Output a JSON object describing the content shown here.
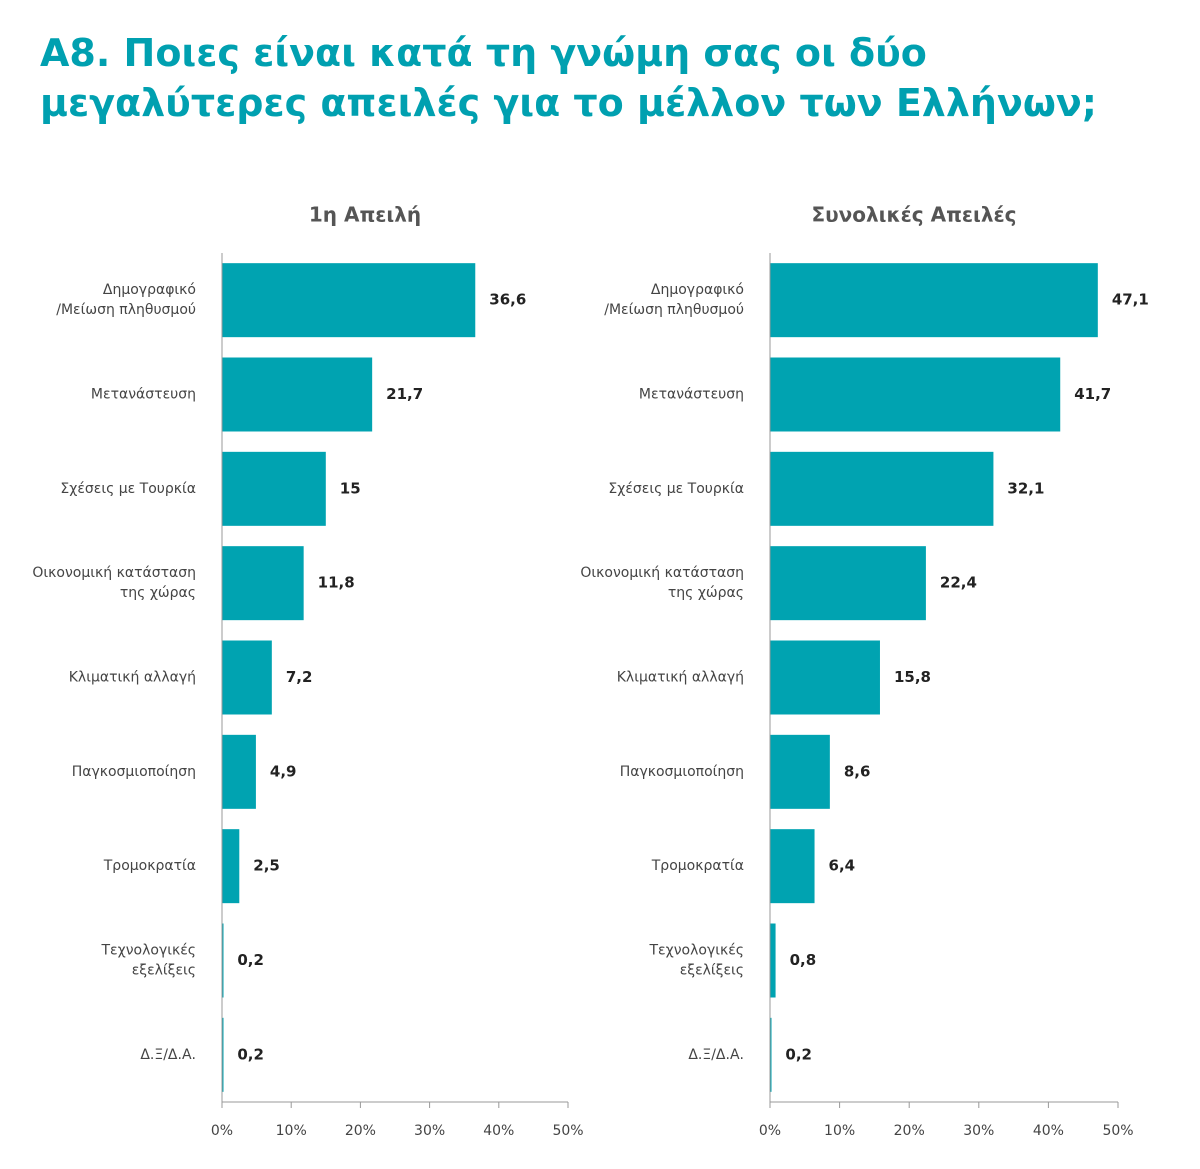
{
  "title": "Α8. Ποιες είναι κατά τη γνώμη σας οι δύο\nμεγαλύτερες απειλές για το μέλλον των Ελλήνων;",
  "chart_data": [
    {
      "type": "barh",
      "title": "1η Απειλή",
      "color": "#00a3b1",
      "categories": [
        "Δημογραφικό\n/Μείωση πληθυσμού",
        "Μετανάστευση",
        "Σχέσεις με Τουρκία",
        "Οικονομική κατάσταση\nτης χώρας",
        "Κλιματική αλλαγή",
        "Παγκοσμιοποίηση",
        "Τρομοκρατία",
        "Τεχνολογικές\nεξελίξεις",
        "Δ.Ξ/Δ.Α."
      ],
      "values": [
        36.6,
        21.7,
        15,
        11.8,
        7.2,
        4.9,
        2.5,
        0.2,
        0.2
      ],
      "value_labels": [
        "36,6",
        "21,7",
        "15",
        "11,8",
        "7,2",
        "4,9",
        "2,5",
        "0,2",
        "0,2"
      ],
      "xlim": [
        0,
        50
      ],
      "xticks": [
        {
          "value": 0,
          "label": "0%"
        },
        {
          "value": 10,
          "label": "10%"
        },
        {
          "value": 20,
          "label": "20%"
        },
        {
          "value": 30,
          "label": "30%"
        },
        {
          "value": 40,
          "label": "40%"
        },
        {
          "value": 50,
          "label": "50%"
        }
      ]
    },
    {
      "type": "barh",
      "title": "Συνολικές Απειλές",
      "color": "#00a3b1",
      "categories": [
        "Δημογραφικό\n/Μείωση πληθυσμού",
        "Μετανάστευση",
        "Σχέσεις με Τουρκία",
        "Οικονομική κατάσταση\nτης χώρας",
        "Κλιματική αλλαγή",
        "Παγκοσμιοποίηση",
        "Τρομοκρατία",
        "Τεχνολογικές\nεξελίξεις",
        "Δ.Ξ/Δ.Α."
      ],
      "values": [
        47.1,
        41.7,
        32.1,
        22.4,
        15.8,
        8.6,
        6.4,
        0.8,
        0.2
      ],
      "value_labels": [
        "47,1",
        "41,7",
        "32,1",
        "22,4",
        "15,8",
        "8,6",
        "6,4",
        "0,8",
        "0,2"
      ],
      "xlim": [
        0,
        50
      ],
      "xticks": [
        {
          "value": 0,
          "label": "0%"
        },
        {
          "value": 10,
          "label": "10%"
        },
        {
          "value": 20,
          "label": "20%"
        },
        {
          "value": 30,
          "label": "30%"
        },
        {
          "value": 40,
          "label": "40%"
        },
        {
          "value": 50,
          "label": "50%"
        }
      ]
    }
  ]
}
